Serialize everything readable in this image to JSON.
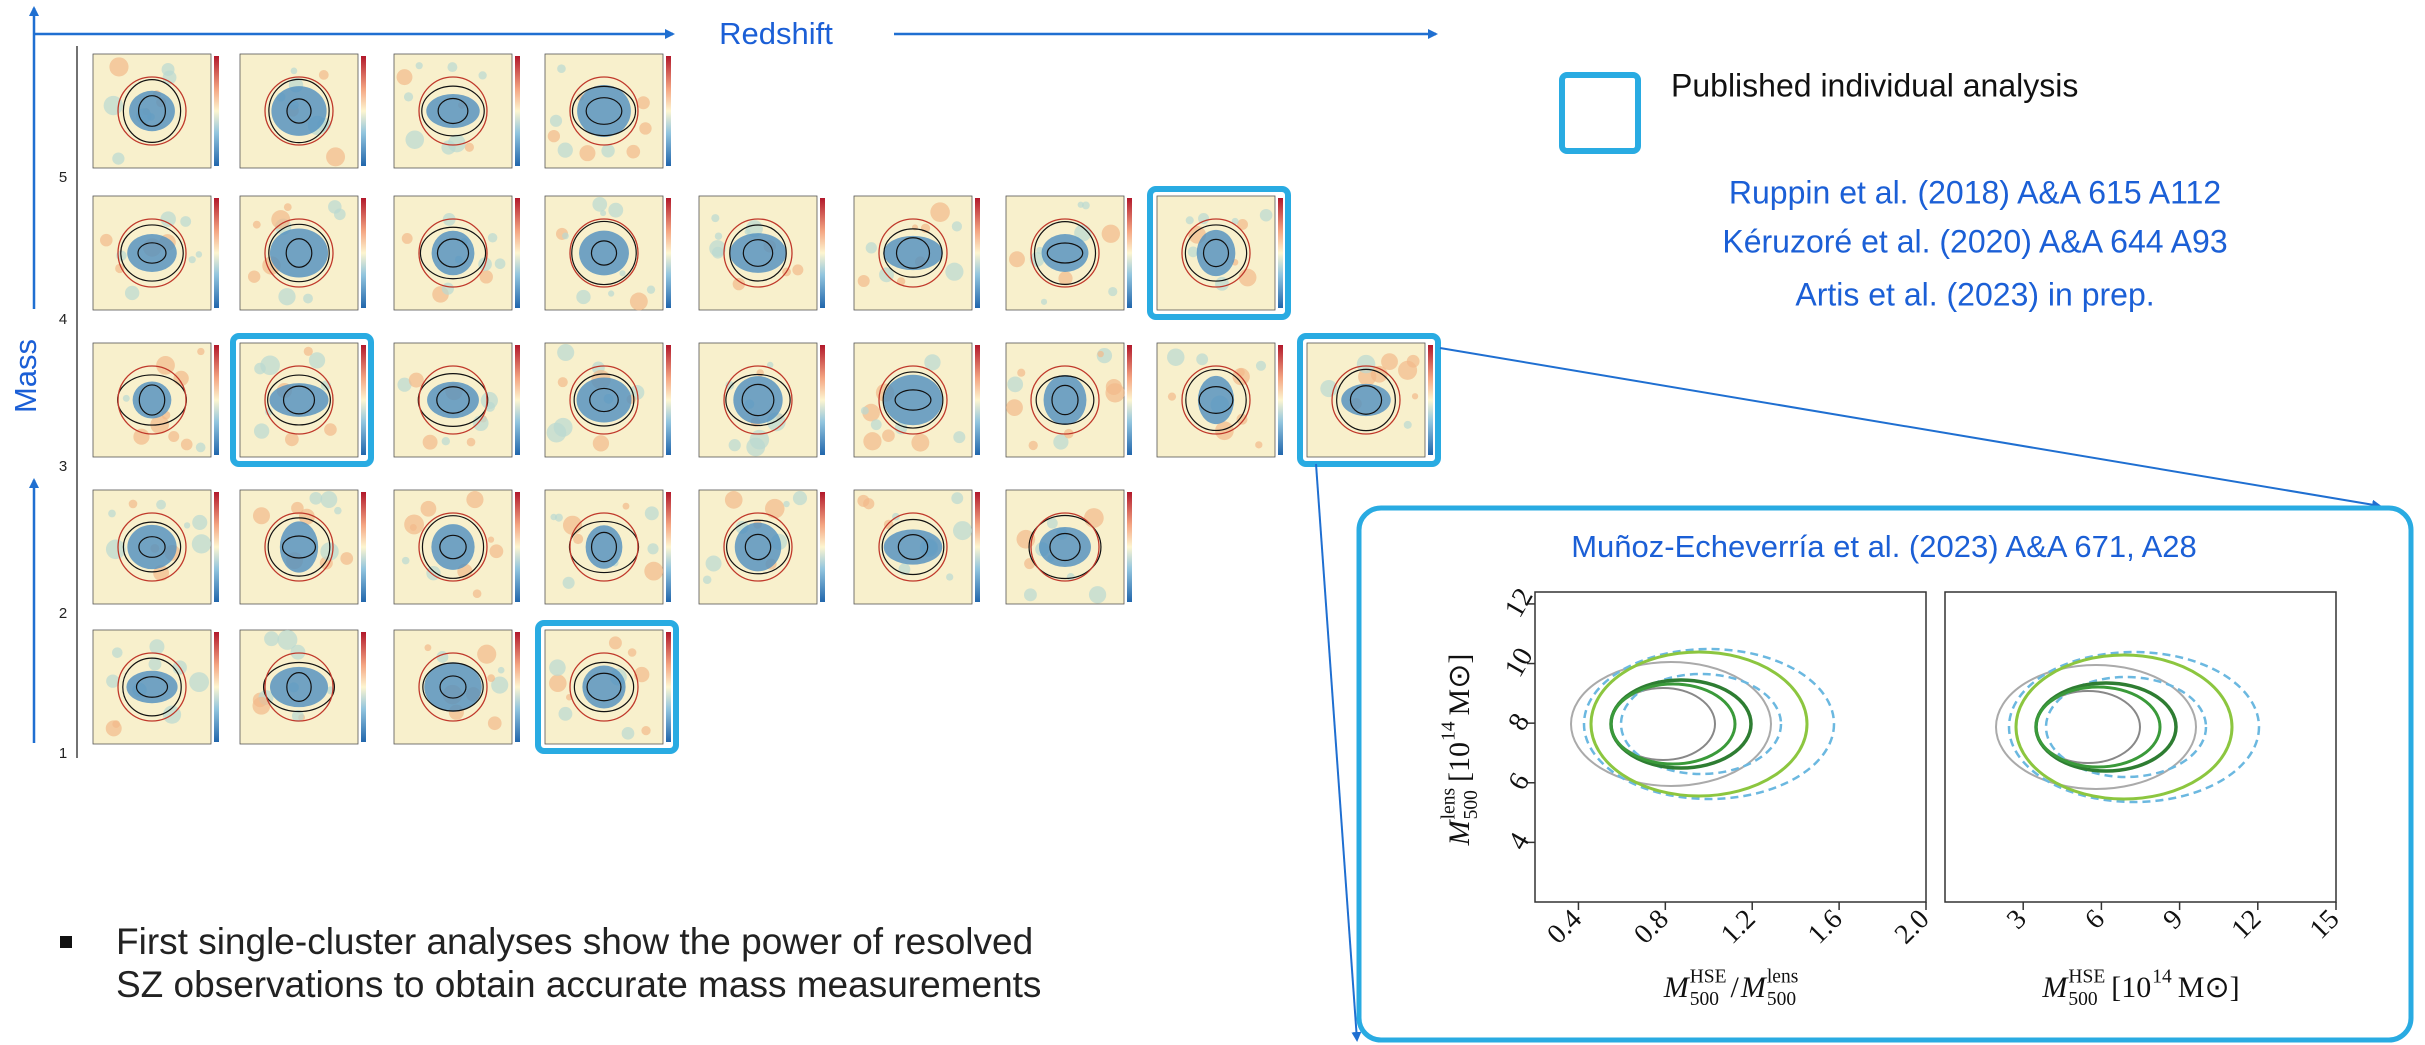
{
  "axes": {
    "x_label": "Redshift",
    "y_label": "Mass",
    "mass_ticks": [
      5,
      4,
      3,
      2,
      1
    ]
  },
  "legend": {
    "label": "Published individual analysis"
  },
  "references": [
    "Ruppin et al. (2018) A&A 615 A112",
    "Kéruzoré et al. (2020)  A&A 644  A93",
    "Artis et al. (2023) in prep."
  ],
  "inset": {
    "title": "Muñoz-Echeverría et al. (2023) A&A  671, A28",
    "y_label": {
      "symbol": "M",
      "sub": "500",
      "sup": "lens",
      "unit": "[10",
      "unit_sup": "14",
      "unit_symbol": "M⊙]"
    },
    "ylim": [
      2,
      12.4
    ],
    "yticks": [
      4,
      6,
      8,
      10,
      12
    ],
    "panels": [
      {
        "xlim": [
          0.2,
          2.0
        ],
        "xticks": [
          0.4,
          0.8,
          1.2,
          1.6,
          {
            "value": 2,
            "label": "2.0"
          }
        ],
        "x_label": {
          "numerator": {
            "symbol": "M",
            "sub": "500",
            "sup": "HSE"
          },
          "sep": "/",
          "denominator": {
            "symbol": "M",
            "sub": "500",
            "sup": "lens"
          }
        }
      },
      {
        "xlim": [
          0,
          15
        ],
        "xticks": [
          3,
          6,
          9,
          12,
          15
        ],
        "x_label": {
          "symbol": "M",
          "sub": "500",
          "sup": "HSE",
          "unit": "[10",
          "unit_sup": "14",
          "unit_symbol": "M⊙]"
        }
      }
    ]
  },
  "bullet": [
    "First single-cluster analyses show the power of resolved",
    "SZ observations to obtain accurate mass measurements"
  ]
}
